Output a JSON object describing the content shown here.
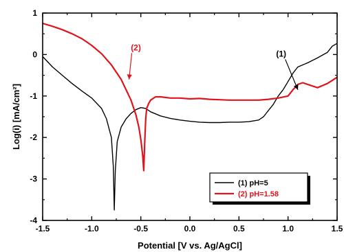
{
  "chart_data": {
    "type": "line",
    "xlabel": "Potential [V vs. Ag/AgCl]",
    "ylabel": "Log(i) [mA/cm²]",
    "xlim": [
      -1.5,
      1.5
    ],
    "ylim": [
      -4,
      1
    ],
    "x_ticks": [
      "-1.5",
      "-1.0",
      "-0.5",
      "0.0",
      "0.5",
      "1.0",
      "1.5"
    ],
    "y_ticks": [
      "-4",
      "-3",
      "-2",
      "-1",
      "0",
      "1"
    ],
    "legend_position": "bottom-right",
    "series": [
      {
        "name": "(1) pH=5",
        "color": "#000000",
        "x": [
          -1.5,
          -1.4,
          -1.3,
          -1.2,
          -1.1,
          -1.0,
          -0.9,
          -0.85,
          -0.8,
          -0.78,
          -0.77,
          -0.76,
          -0.74,
          -0.7,
          -0.65,
          -0.6,
          -0.55,
          -0.5,
          -0.45,
          -0.4,
          -0.3,
          -0.2,
          -0.1,
          0.0,
          0.1,
          0.2,
          0.3,
          0.4,
          0.5,
          0.6,
          0.7,
          0.75,
          0.8,
          0.85,
          0.9,
          0.95,
          1.0,
          1.05,
          1.1,
          1.2,
          1.3,
          1.4,
          1.45,
          1.5
        ],
        "y": [
          -0.05,
          -0.3,
          -0.5,
          -0.7,
          -0.88,
          -1.05,
          -1.3,
          -1.55,
          -2.0,
          -2.7,
          -3.75,
          -2.8,
          -2.1,
          -1.75,
          -1.55,
          -1.42,
          -1.33,
          -1.28,
          -1.3,
          -1.38,
          -1.48,
          -1.54,
          -1.58,
          -1.61,
          -1.63,
          -1.64,
          -1.64,
          -1.63,
          -1.63,
          -1.62,
          -1.58,
          -1.5,
          -1.35,
          -1.2,
          -1.0,
          -0.85,
          -0.65,
          -0.45,
          -0.3,
          -0.2,
          -0.08,
          0.05,
          0.2,
          0.27
        ]
      },
      {
        "name": "(2) pH=1.58",
        "color": "#e0141b",
        "x": [
          -1.5,
          -1.4,
          -1.3,
          -1.2,
          -1.1,
          -1.0,
          -0.9,
          -0.8,
          -0.7,
          -0.6,
          -0.55,
          -0.52,
          -0.5,
          -0.48,
          -0.47,
          -0.46,
          -0.45,
          -0.44,
          -0.42,
          -0.4,
          -0.35,
          -0.3,
          -0.2,
          -0.1,
          0.0,
          0.1,
          0.2,
          0.3,
          0.4,
          0.5,
          0.6,
          0.7,
          0.8,
          0.9,
          1.0,
          1.05,
          1.1,
          1.15,
          1.2,
          1.3,
          1.4,
          1.5
        ],
        "y": [
          0.75,
          0.68,
          0.6,
          0.5,
          0.38,
          0.22,
          0.02,
          -0.25,
          -0.6,
          -1.1,
          -1.45,
          -1.75,
          -2.05,
          -2.45,
          -2.8,
          -2.1,
          -1.55,
          -1.3,
          -1.18,
          -1.1,
          -1.02,
          -1.02,
          -1.05,
          -1.05,
          -1.07,
          -1.06,
          -1.08,
          -1.09,
          -1.1,
          -1.1,
          -1.1,
          -1.1,
          -1.08,
          -1.05,
          -1.0,
          -0.85,
          -0.72,
          -0.68,
          -0.72,
          -0.8,
          -0.7,
          -0.55
        ]
      }
    ],
    "annotations": [
      {
        "text": "(2)",
        "color": "#e0141b",
        "text_x": -0.55,
        "text_y": 0.1,
        "arrow_to_x": -0.62,
        "arrow_to_y": -0.6
      },
      {
        "text": "(1)",
        "color": "#000000",
        "text_x": 0.93,
        "text_y": -0.05,
        "arrow_to_x": 1.1,
        "arrow_to_y": -0.85
      }
    ]
  }
}
